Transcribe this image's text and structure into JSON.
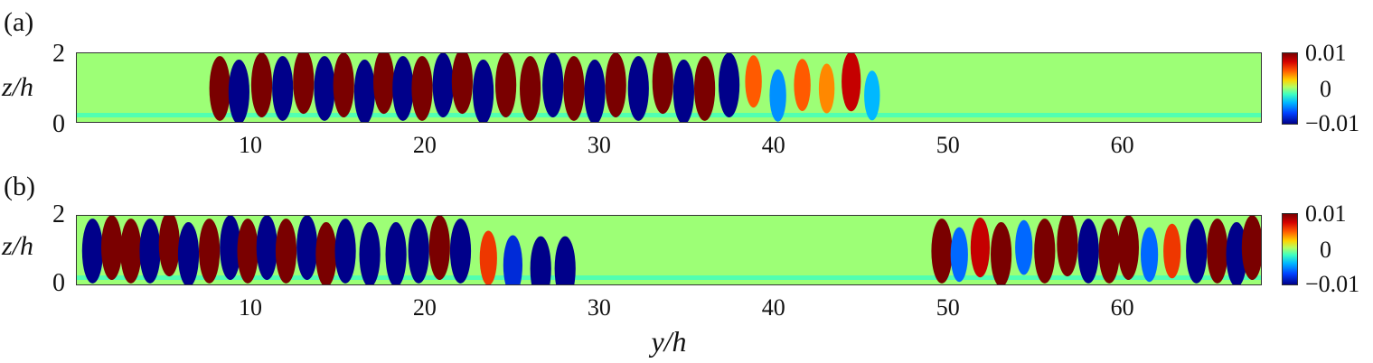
{
  "chart_data": [
    {
      "type": "heatmap",
      "panel_label": "(a)",
      "xlabel": "",
      "ylabel": "z/h",
      "xlim": [
        0,
        68
      ],
      "ylim": [
        0,
        2
      ],
      "x_ticks": [
        "10",
        "20",
        "30",
        "40",
        "50",
        "60"
      ],
      "y_ticks": [
        "2",
        "0"
      ],
      "colorbar": {
        "ticks": [
          "0.01",
          "0",
          "−0.01"
        ],
        "range": [
          -0.01,
          0.01
        ]
      },
      "structures": [
        {
          "y": 8.2,
          "z": 1.0,
          "value": 0.01
        },
        {
          "y": 9.3,
          "z": 0.9,
          "value": -0.01
        },
        {
          "y": 10.6,
          "z": 1.1,
          "value": 0.01
        },
        {
          "y": 11.8,
          "z": 1.0,
          "value": -0.01
        },
        {
          "y": 13.0,
          "z": 1.2,
          "value": 0.01
        },
        {
          "y": 14.2,
          "z": 1.0,
          "value": -0.01
        },
        {
          "y": 15.3,
          "z": 1.1,
          "value": 0.01
        },
        {
          "y": 16.5,
          "z": 0.9,
          "value": -0.01
        },
        {
          "y": 17.6,
          "z": 1.2,
          "value": 0.01
        },
        {
          "y": 18.7,
          "z": 1.0,
          "value": -0.01
        },
        {
          "y": 19.8,
          "z": 1.0,
          "value": 0.01
        },
        {
          "y": 21.0,
          "z": 1.1,
          "value": -0.01
        },
        {
          "y": 22.1,
          "z": 1.2,
          "value": 0.01
        },
        {
          "y": 23.3,
          "z": 0.9,
          "value": -0.01
        },
        {
          "y": 24.6,
          "z": 1.1,
          "value": 0.01
        },
        {
          "y": 26.0,
          "z": 1.0,
          "value": 0.01
        },
        {
          "y": 27.3,
          "z": 1.1,
          "value": -0.01
        },
        {
          "y": 28.5,
          "z": 1.0,
          "value": 0.01
        },
        {
          "y": 29.7,
          "z": 0.9,
          "value": -0.01
        },
        {
          "y": 30.9,
          "z": 1.1,
          "value": 0.01
        },
        {
          "y": 32.2,
          "z": 1.0,
          "value": -0.01
        },
        {
          "y": 33.6,
          "z": 1.2,
          "value": 0.01
        },
        {
          "y": 34.8,
          "z": 0.9,
          "value": -0.01
        },
        {
          "y": 36.0,
          "z": 1.0,
          "value": 0.01
        },
        {
          "y": 37.4,
          "z": 1.1,
          "value": -0.01
        },
        {
          "y": 38.8,
          "z": 1.2,
          "value": 0.005
        },
        {
          "y": 40.2,
          "z": 0.8,
          "value": -0.005
        },
        {
          "y": 41.6,
          "z": 1.1,
          "value": 0.005
        },
        {
          "y": 43.0,
          "z": 1.0,
          "value": 0.004
        },
        {
          "y": 44.4,
          "z": 1.2,
          "value": 0.008
        },
        {
          "y": 45.6,
          "z": 0.8,
          "value": -0.004
        }
      ]
    },
    {
      "type": "heatmap",
      "panel_label": "(b)",
      "xlabel": "y/h",
      "ylabel": "z/h",
      "xlim": [
        0,
        68
      ],
      "ylim": [
        0,
        2
      ],
      "x_ticks": [
        "10",
        "20",
        "30",
        "40",
        "50",
        "60"
      ],
      "y_ticks": [
        "2",
        "0"
      ],
      "colorbar": {
        "ticks": [
          "0.01",
          "0",
          "−0.01"
        ],
        "range": [
          -0.01,
          0.01
        ]
      },
      "structures": [
        {
          "y": 0.9,
          "z": 1.0,
          "value": -0.01
        },
        {
          "y": 2.0,
          "z": 1.1,
          "value": 0.01
        },
        {
          "y": 3.1,
          "z": 1.0,
          "value": 0.01
        },
        {
          "y": 4.2,
          "z": 1.0,
          "value": -0.01
        },
        {
          "y": 5.3,
          "z": 1.2,
          "value": 0.01
        },
        {
          "y": 6.4,
          "z": 0.9,
          "value": -0.01
        },
        {
          "y": 7.6,
          "z": 1.0,
          "value": 0.01
        },
        {
          "y": 8.8,
          "z": 1.1,
          "value": -0.01
        },
        {
          "y": 9.8,
          "z": 1.0,
          "value": 0.01
        },
        {
          "y": 10.9,
          "z": 1.1,
          "value": -0.01
        },
        {
          "y": 12.0,
          "z": 1.0,
          "value": 0.01
        },
        {
          "y": 13.2,
          "z": 1.1,
          "value": -0.01
        },
        {
          "y": 14.3,
          "z": 0.9,
          "value": 0.01
        },
        {
          "y": 15.4,
          "z": 1.0,
          "value": -0.01
        },
        {
          "y": 16.8,
          "z": 0.9,
          "value": -0.01
        },
        {
          "y": 18.3,
          "z": 0.9,
          "value": -0.01
        },
        {
          "y": 19.6,
          "z": 1.0,
          "value": -0.01
        },
        {
          "y": 20.8,
          "z": 1.1,
          "value": 0.01
        },
        {
          "y": 22.0,
          "z": 1.0,
          "value": -0.01
        },
        {
          "y": 23.6,
          "z": 0.8,
          "value": 0.006
        },
        {
          "y": 25.0,
          "z": 0.6,
          "value": -0.008
        },
        {
          "y": 26.6,
          "z": 0.5,
          "value": -0.01
        },
        {
          "y": 28.0,
          "z": 0.5,
          "value": -0.01
        },
        {
          "y": 49.6,
          "z": 1.0,
          "value": 0.01
        },
        {
          "y": 50.6,
          "z": 0.9,
          "value": -0.006
        },
        {
          "y": 51.8,
          "z": 1.1,
          "value": 0.008
        },
        {
          "y": 53.0,
          "z": 0.9,
          "value": 0.01
        },
        {
          "y": 54.3,
          "z": 1.1,
          "value": -0.006
        },
        {
          "y": 55.5,
          "z": 1.0,
          "value": 0.01
        },
        {
          "y": 56.8,
          "z": 1.2,
          "value": 0.01
        },
        {
          "y": 58.0,
          "z": 1.0,
          "value": -0.01
        },
        {
          "y": 59.2,
          "z": 1.0,
          "value": 0.01
        },
        {
          "y": 60.3,
          "z": 1.1,
          "value": 0.01
        },
        {
          "y": 61.5,
          "z": 0.9,
          "value": -0.006
        },
        {
          "y": 62.8,
          "z": 1.0,
          "value": 0.006
        },
        {
          "y": 64.2,
          "z": 1.0,
          "value": -0.01
        },
        {
          "y": 65.4,
          "z": 1.0,
          "value": 0.01
        },
        {
          "y": 66.5,
          "z": 0.9,
          "value": -0.01
        },
        {
          "y": 67.4,
          "z": 1.1,
          "value": 0.01
        }
      ]
    }
  ]
}
